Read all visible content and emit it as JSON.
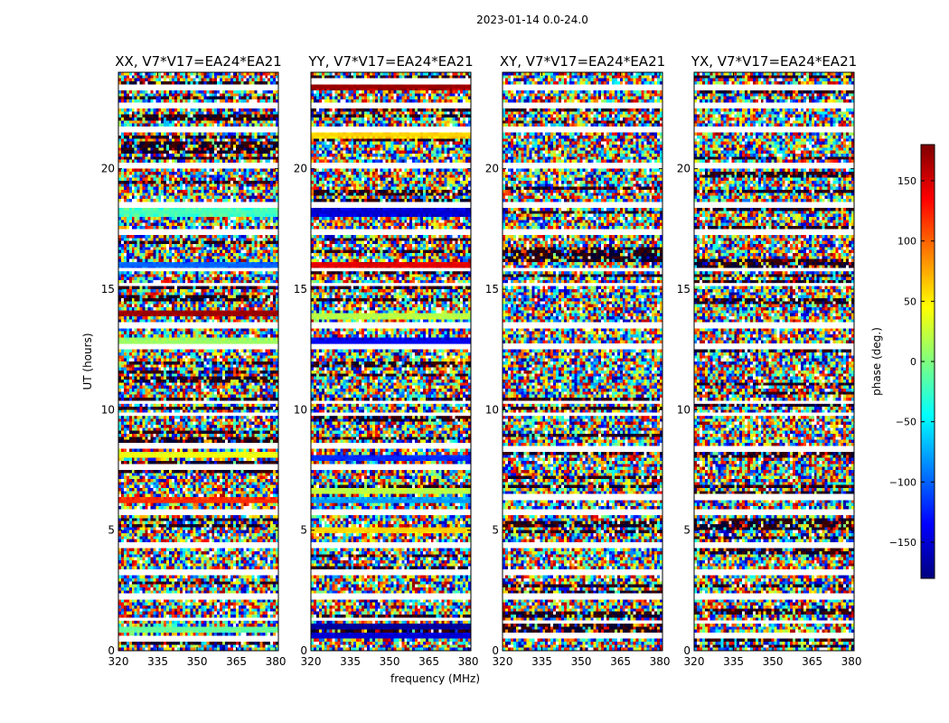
{
  "figure_title": "2023-01-14 0.0-24.0",
  "shared": {
    "xlabel": "frequency (MHz)",
    "ylabel": "UT (hours)",
    "x_ticks": [
      320,
      335,
      350,
      365,
      380
    ],
    "y_ticks": [
      0,
      5,
      10,
      15,
      20
    ],
    "xlim": [
      320,
      381
    ],
    "ylim": [
      0,
      24
    ]
  },
  "colorbar": {
    "label": "phase (deg.)",
    "range": [
      -180,
      180
    ],
    "ticks": [
      -150,
      -100,
      -50,
      0,
      50,
      100,
      150
    ],
    "tick_labels": [
      "−150",
      "−100",
      "−50",
      "0",
      "50",
      "100",
      "150"
    ],
    "colormap": "jet",
    "jet_stops": [
      "#00007f",
      "#0000ff",
      "#007fff",
      "#00ffff",
      "#7fff7f",
      "#ffff00",
      "#ff7f00",
      "#ff0000",
      "#7f0000"
    ]
  },
  "chart_data": [
    {
      "type": "heatmap",
      "title": "XX, V7*V17=EA24*EA21",
      "x_range_mhz": [
        320,
        381
      ],
      "y_range_hours": [
        0,
        24
      ],
      "value": "phase (deg.)",
      "coherent_bands": [
        {
          "ut": 0.9,
          "phase_deg": -10
        },
        {
          "ut": 6.2,
          "phase_deg": 120
        },
        {
          "ut": 8.1,
          "phase_deg": 40
        },
        {
          "ut": 12.8,
          "phase_deg": 10
        },
        {
          "ut": 14.0,
          "phase_deg": 170
        },
        {
          "ut": 16.0,
          "phase_deg": -100
        },
        {
          "ut": 18.2,
          "phase_deg": -20
        }
      ],
      "flagged_ut": [
        0.5,
        1.3,
        2.2,
        3.3,
        4.4,
        5.7,
        7.6,
        8.5,
        9.8,
        10.3,
        12.6,
        13.5,
        15.2,
        15.8,
        17.4,
        18.5,
        20.1,
        21.6,
        22.6,
        23.4
      ]
    },
    {
      "type": "heatmap",
      "title": "YY, V7*V17=EA24*EA21",
      "x_range_mhz": [
        320,
        381
      ],
      "y_range_hours": [
        0,
        24
      ],
      "value": "phase (deg.)",
      "coherent_bands": [
        {
          "ut": 0.6,
          "phase_deg": -150
        },
        {
          "ut": 1.0,
          "phase_deg": -170
        },
        {
          "ut": 5.0,
          "phase_deg": 60
        },
        {
          "ut": 6.2,
          "phase_deg": -80
        },
        {
          "ut": 6.6,
          "phase_deg": 20
        },
        {
          "ut": 8.0,
          "phase_deg": -120
        },
        {
          "ut": 12.8,
          "phase_deg": -140
        },
        {
          "ut": 13.9,
          "phase_deg": 20
        },
        {
          "ut": 16.0,
          "phase_deg": 145
        },
        {
          "ut": 18.2,
          "phase_deg": -150
        },
        {
          "ut": 21.4,
          "phase_deg": 60
        },
        {
          "ut": 23.4,
          "phase_deg": 170
        }
      ],
      "flagged_ut": [
        1.3,
        2.2,
        3.3,
        4.4,
        5.7,
        7.6,
        8.5,
        9.8,
        10.3,
        12.6,
        13.5,
        15.2,
        15.8,
        17.4,
        18.5,
        20.1,
        21.6,
        22.6,
        23.6
      ]
    },
    {
      "type": "heatmap",
      "title": "XY, V7*V17=EA24*EA21",
      "x_range_mhz": [
        320,
        381
      ],
      "y_range_hours": [
        0,
        24
      ],
      "value": "phase (deg.)",
      "coherent_bands": [],
      "flagged_ut": [
        0.6,
        1.2,
        2.2,
        3.3,
        4.4,
        5.7,
        6.4,
        8.4,
        9.8,
        10.3,
        12.6,
        13.5,
        15.2,
        15.8,
        17.4,
        18.5,
        20.1,
        21.6,
        22.6,
        23.4
      ]
    },
    {
      "type": "heatmap",
      "title": "YX, V7*V17=EA24*EA21",
      "x_range_mhz": [
        320,
        381
      ],
      "y_range_hours": [
        0,
        24
      ],
      "value": "phase (deg.)",
      "coherent_bands": [],
      "flagged_ut": [
        0.6,
        1.2,
        2.2,
        3.3,
        4.4,
        5.7,
        6.4,
        8.4,
        9.8,
        10.3,
        12.6,
        13.5,
        15.2,
        15.8,
        17.4,
        18.5,
        20.1,
        21.6,
        22.6,
        23.4
      ]
    }
  ]
}
